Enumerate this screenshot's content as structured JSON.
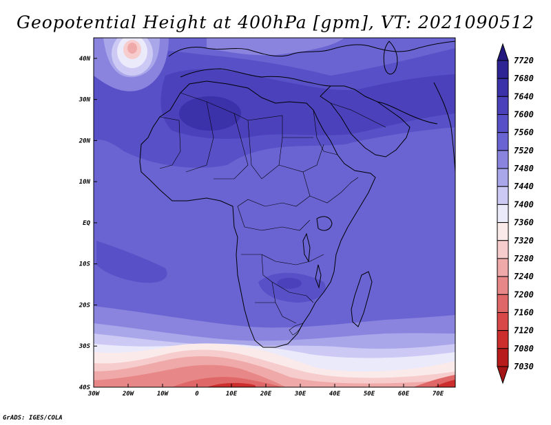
{
  "title": "Geopotential Height at 400hPa [gpm], VT: 2021090512",
  "credit": "GrADS: IGES/COLA",
  "map": {
    "lon_range": [
      -30,
      75
    ],
    "lat_range": [
      -40,
      45
    ],
    "lon_ticks": [
      {
        "value": -30,
        "label": "30W"
      },
      {
        "value": -20,
        "label": "20W"
      },
      {
        "value": -10,
        "label": "10W"
      },
      {
        "value": 0,
        "label": "0"
      },
      {
        "value": 10,
        "label": "10E"
      },
      {
        "value": 20,
        "label": "20E"
      },
      {
        "value": 30,
        "label": "30E"
      },
      {
        "value": 40,
        "label": "40E"
      },
      {
        "value": 50,
        "label": "50E"
      },
      {
        "value": 60,
        "label": "60E"
      },
      {
        "value": 70,
        "label": "70E"
      }
    ],
    "lat_ticks": [
      {
        "value": 40,
        "label": "40N"
      },
      {
        "value": 30,
        "label": "30N"
      },
      {
        "value": 20,
        "label": "20N"
      },
      {
        "value": 10,
        "label": "10N"
      },
      {
        "value": 0,
        "label": "EQ"
      },
      {
        "value": -10,
        "label": "10S"
      },
      {
        "value": -20,
        "label": "20S"
      },
      {
        "value": -30,
        "label": "30S"
      },
      {
        "value": -40,
        "label": "40S"
      }
    ]
  },
  "colorbar": {
    "levels": [
      "7720",
      "7680",
      "7640",
      "7600",
      "7560",
      "7520",
      "7480",
      "7440",
      "7400",
      "7360",
      "7320",
      "7280",
      "7240",
      "7200",
      "7160",
      "7120",
      "7080",
      "7030"
    ],
    "colors": [
      "#23187f",
      "#2f2494",
      "#3b31a9",
      "#4a41bb",
      "#5850c6",
      "#6a63d2",
      "#8a84de",
      "#aaa6ea",
      "#cccaf4",
      "#ebeafb",
      "#fbeaea",
      "#f7cccc",
      "#f0a9a9",
      "#e88787",
      "#e06767",
      "#d84848",
      "#cc2e2e",
      "#b81b1b",
      "#a51515"
    ]
  }
}
